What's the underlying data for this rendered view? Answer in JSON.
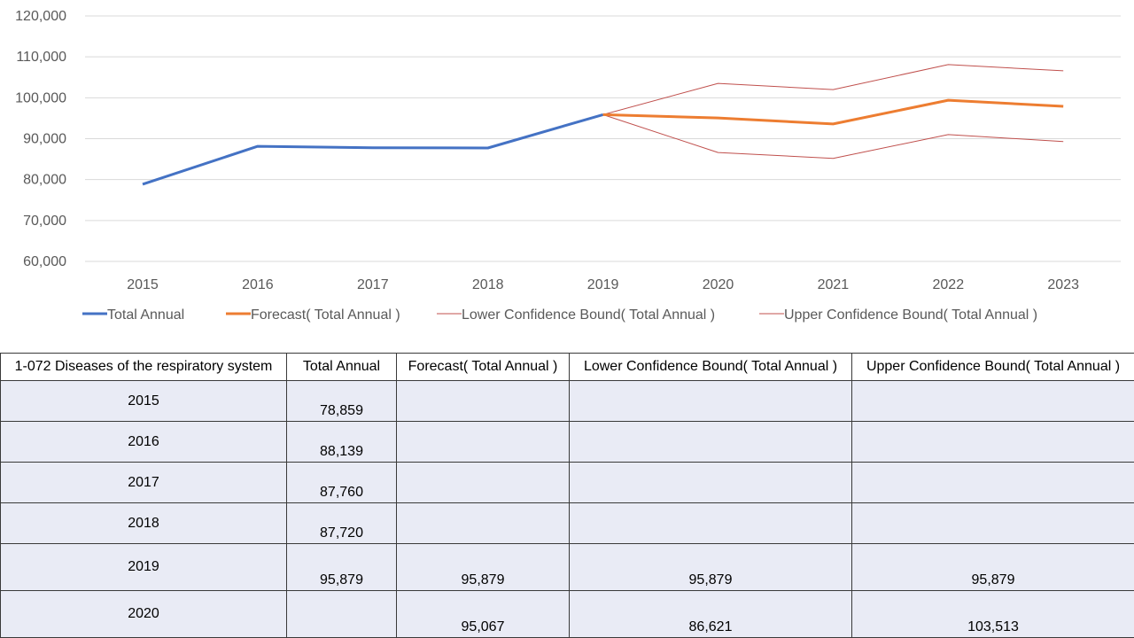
{
  "chart_data": {
    "type": "line",
    "categories": [
      "2015",
      "2016",
      "2017",
      "2018",
      "2019",
      "2020",
      "2021",
      "2022",
      "2023"
    ],
    "series": [
      {
        "name": "Total Annual",
        "values": [
          78859,
          88139,
          87760,
          87720,
          95879,
          null,
          null,
          null,
          null
        ],
        "color": "#4472c4",
        "width": "thick"
      },
      {
        "name": "Forecast( Total Annual )",
        "values": [
          null,
          null,
          null,
          null,
          95879,
          95067,
          93600,
          99400,
          97900
        ],
        "color": "#ed7d31",
        "width": "thick"
      },
      {
        "name": "Lower Confidence Bound( Total Annual )",
        "values": [
          null,
          null,
          null,
          null,
          95879,
          86621,
          85200,
          91000,
          89300
        ],
        "color": "#c0504d",
        "width": "thin"
      },
      {
        "name": "Upper Confidence Bound( Total Annual )",
        "values": [
          null,
          null,
          null,
          null,
          95879,
          103513,
          102000,
          108100,
          106600
        ],
        "color": "#c0504d",
        "width": "thin"
      }
    ],
    "yticks": [
      "60,000",
      "70,000",
      "80,000",
      "90,000",
      "100,000",
      "110,000",
      "120,000"
    ],
    "ylim": [
      60000,
      120000
    ],
    "grid": true,
    "legend_position": "bottom"
  },
  "table": {
    "headers": [
      "1-072 Diseases of the respiratory system",
      "Total Annual",
      "Forecast( Total Annual )",
      "Lower Confidence Bound( Total Annual )",
      "Upper Confidence Bound( Total Annual )"
    ],
    "rows": [
      [
        "2015",
        "78,859",
        "",
        "",
        ""
      ],
      [
        "2016",
        "88,139",
        "",
        "",
        ""
      ],
      [
        "2017",
        "87,760",
        "",
        "",
        ""
      ],
      [
        "2018",
        "87,720",
        "",
        "",
        ""
      ],
      [
        "2019",
        "95,879",
        "95,879",
        "95,879",
        "95,879"
      ],
      [
        "2020",
        "",
        "95,067",
        "86,621",
        "103,513"
      ]
    ]
  }
}
